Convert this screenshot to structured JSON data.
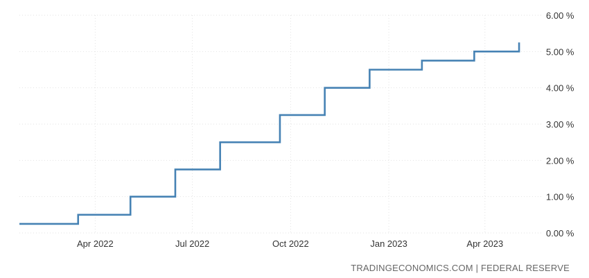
{
  "chart_data": {
    "type": "line",
    "title": "",
    "xlabel": "",
    "ylabel": "",
    "step": true,
    "x_ticks": [
      "Apr 2022",
      "Jul 2022",
      "Oct 2022",
      "Jan 2023",
      "Apr 2023"
    ],
    "y_ticks": [
      "0.00 %",
      "1.00 %",
      "2.00 %",
      "3.00 %",
      "4.00 %",
      "5.00 %",
      "6.00 %"
    ],
    "ylim": [
      0,
      6
    ],
    "xlim": [
      "2022-01-20",
      "2023-05-25"
    ],
    "grid": true,
    "y_axis_side": "right",
    "line_color": "#4682B4",
    "series": [
      {
        "points": [
          {
            "date": "2022-01-20",
            "value": 0.25
          },
          {
            "date": "2022-03-16",
            "value": 0.5
          },
          {
            "date": "2022-05-04",
            "value": 1.0
          },
          {
            "date": "2022-06-15",
            "value": 1.75
          },
          {
            "date": "2022-07-27",
            "value": 2.5
          },
          {
            "date": "2022-09-21",
            "value": 3.25
          },
          {
            "date": "2022-11-02",
            "value": 4.0
          },
          {
            "date": "2022-12-14",
            "value": 4.5
          },
          {
            "date": "2023-02-01",
            "value": 4.75
          },
          {
            "date": "2023-03-22",
            "value": 5.0
          },
          {
            "date": "2023-05-03",
            "value": 5.25
          }
        ]
      }
    ]
  },
  "source": "TRADINGECONOMICS.COM | FEDERAL RESERVE"
}
